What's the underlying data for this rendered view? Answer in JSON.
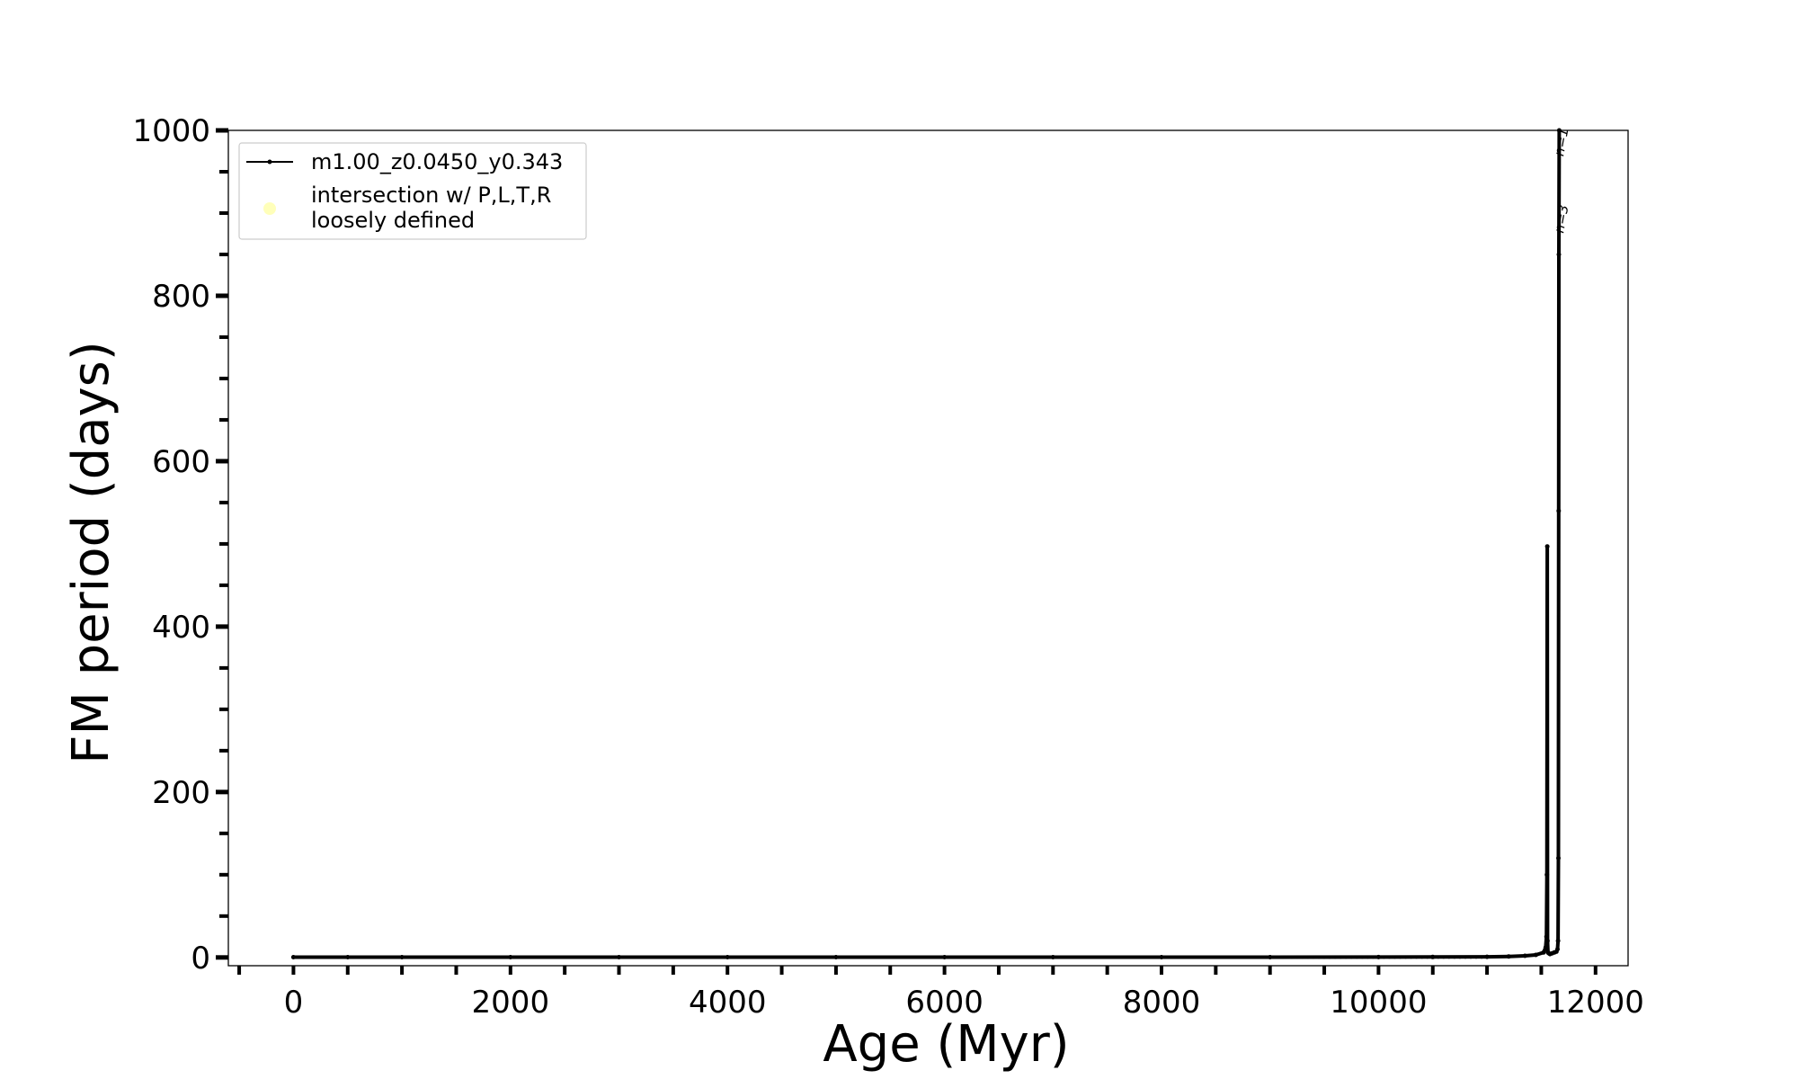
{
  "chart_data": {
    "type": "line",
    "xlabel": "Age (Myr)",
    "ylabel": "FM period (days)",
    "xlim": [
      -600,
      12300
    ],
    "ylim": [
      -10,
      1000
    ],
    "xticks": [
      0,
      2000,
      4000,
      6000,
      8000,
      10000,
      12000
    ],
    "yticks": [
      0,
      200,
      400,
      600,
      800,
      1000
    ],
    "grid": false,
    "legend_position": "top-left",
    "series": [
      {
        "name": "m1.00_z0.0450_y0.343",
        "color": "#000000",
        "marker": "dot",
        "x": [
          0,
          500,
          1000,
          2000,
          3000,
          4000,
          5000,
          6000,
          7000,
          8000,
          9000,
          10000,
          10500,
          11000,
          11200,
          11350,
          11450,
          11520,
          11540,
          11548,
          11552,
          11555,
          11558,
          11562,
          11570,
          11580,
          11600,
          11620,
          11640,
          11650,
          11655,
          11658,
          11660,
          11662,
          11665
        ],
        "y": [
          0.3,
          0.3,
          0.3,
          0.3,
          0.3,
          0.3,
          0.3,
          0.3,
          0.3,
          0.3,
          0.3,
          0.4,
          0.5,
          0.8,
          1.2,
          2,
          3,
          6,
          12,
          25,
          100,
          497,
          20,
          6,
          5,
          4,
          5,
          6,
          7,
          10,
          20,
          120,
          540,
          850,
          1000
        ]
      }
    ],
    "legend_entries": [
      {
        "label": "m1.00_z0.0450_y0.343",
        "symbol": "line-with-dot",
        "color": "#000000"
      },
      {
        "label": "intersection w/ P,L,T,R loosely defined",
        "symbol": "circle",
        "color": "#ffffb3"
      }
    ],
    "legend_label_lines": [
      "intersection w/ P,L,T,R",
      "loosely defined"
    ],
    "annotations": [
      {
        "text": "n=1",
        "x": 11660,
        "y": 985
      },
      {
        "text": "n=3",
        "x": 11660,
        "y": 892
      }
    ]
  }
}
